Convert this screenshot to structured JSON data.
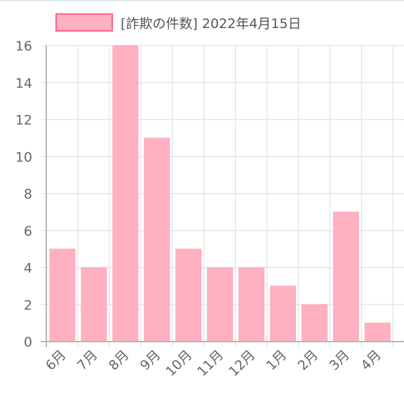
{
  "chart_data": {
    "type": "bar",
    "categories": [
      "6月",
      "7月",
      "8月",
      "9月",
      "10月",
      "11月",
      "12月",
      "1月",
      "2月",
      "3月",
      "4月"
    ],
    "series": [
      {
        "name": "[詐欺の件数] 2022年4月15日",
        "values": [
          5,
          4,
          16,
          11,
          5,
          4,
          4,
          3,
          2,
          7,
          1
        ]
      }
    ],
    "ylim": [
      0,
      16
    ],
    "yticks": [
      0,
      2,
      4,
      6,
      8,
      10,
      12,
      14,
      16
    ],
    "grid": true,
    "legend_position": "top",
    "colors": {
      "bar_fill": "#ffb1c1",
      "bar_stroke": "#ff6384",
      "grid": "#e2e2e2",
      "axis": "#b5b5b5",
      "tick_text": "#666666"
    }
  }
}
